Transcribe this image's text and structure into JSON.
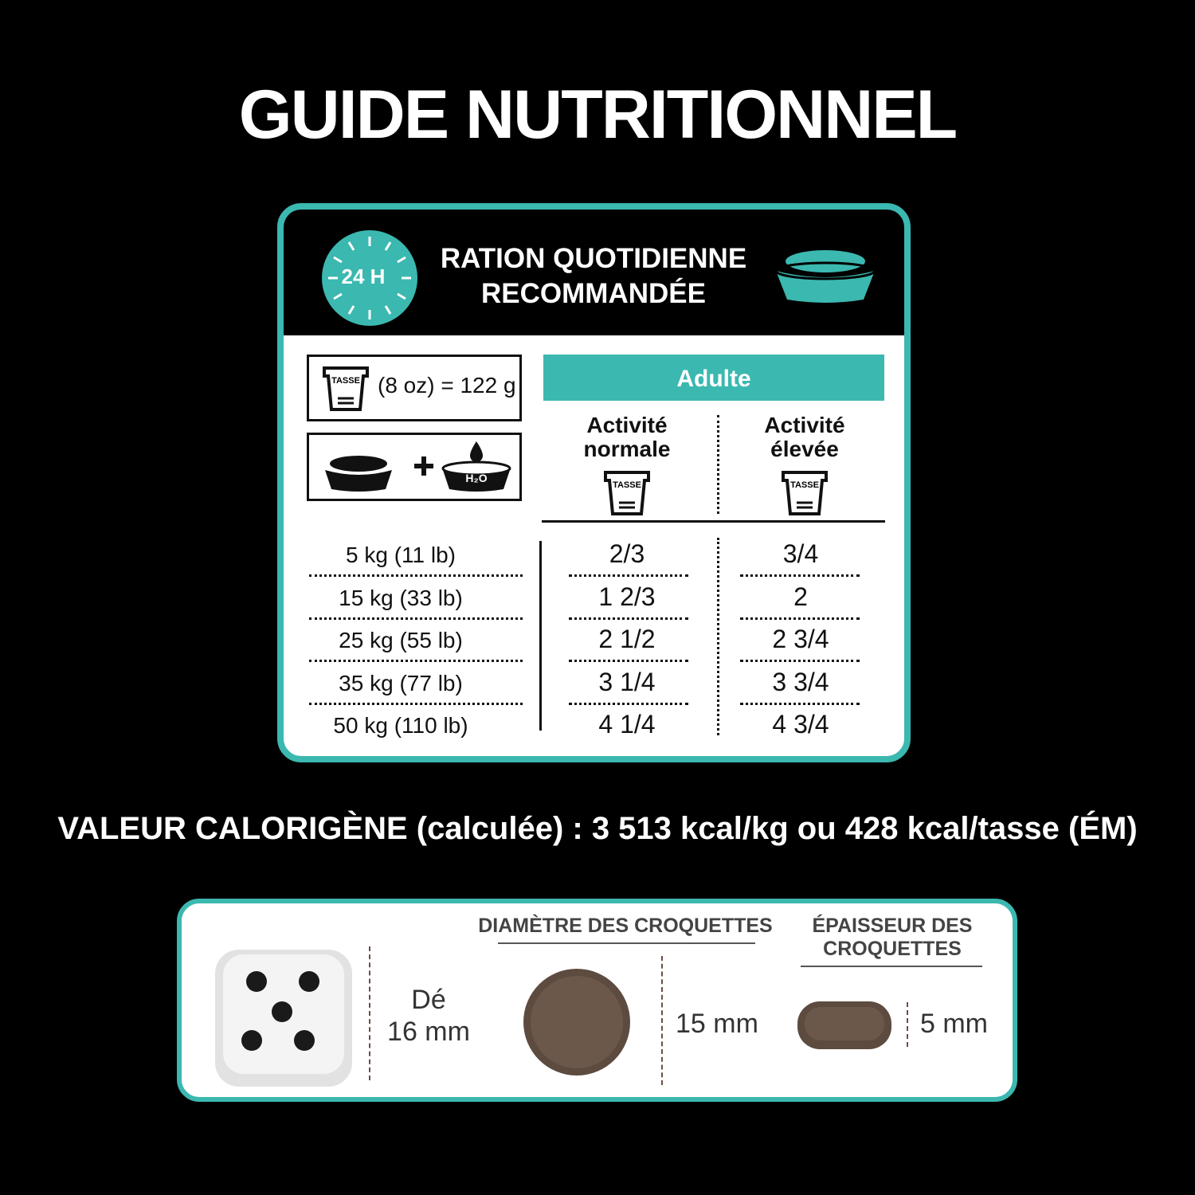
{
  "title": "GUIDE NUTRITIONNEL",
  "ration": {
    "badge": "24 H",
    "heading": [
      "RATION QUOTIDIENNE",
      "RECOMMANDÉE"
    ],
    "cup_label": "TASSE",
    "cup_measure": "(8 oz) = 122 g",
    "water_label": "H₂O",
    "group": "Adulte",
    "columns": [
      [
        "Activité",
        "normale"
      ],
      [
        "Activité",
        "élevée"
      ]
    ],
    "rows": [
      {
        "weight": "5 kg (11 lb)",
        "normal": "2/3",
        "high": "3/4"
      },
      {
        "weight": "15 kg (33 lb)",
        "normal": "1 2/3",
        "high": "2"
      },
      {
        "weight": "25 kg (55 lb)",
        "normal": "2 1/2",
        "high": "2 3/4"
      },
      {
        "weight": "35 kg (77 lb)",
        "normal": "3 1/4",
        "high": "3 3/4"
      },
      {
        "weight": "50 kg (110 lb)",
        "normal": "4 1/4",
        "high": "4 3/4"
      }
    ]
  },
  "calorie": "VALEUR CALORIGÈNE (calculée) : 3 513 kcal/kg ou 428 kcal/tasse (ÉM)",
  "sizes": {
    "die": [
      "Dé",
      "16 mm"
    ],
    "diameter_title": "DIAMÈTRE DES CROQUETTES",
    "diameter": "15 mm",
    "thickness_title": [
      "ÉPAISSEUR DES",
      "CROQUETTES"
    ],
    "thickness": "5 mm"
  }
}
